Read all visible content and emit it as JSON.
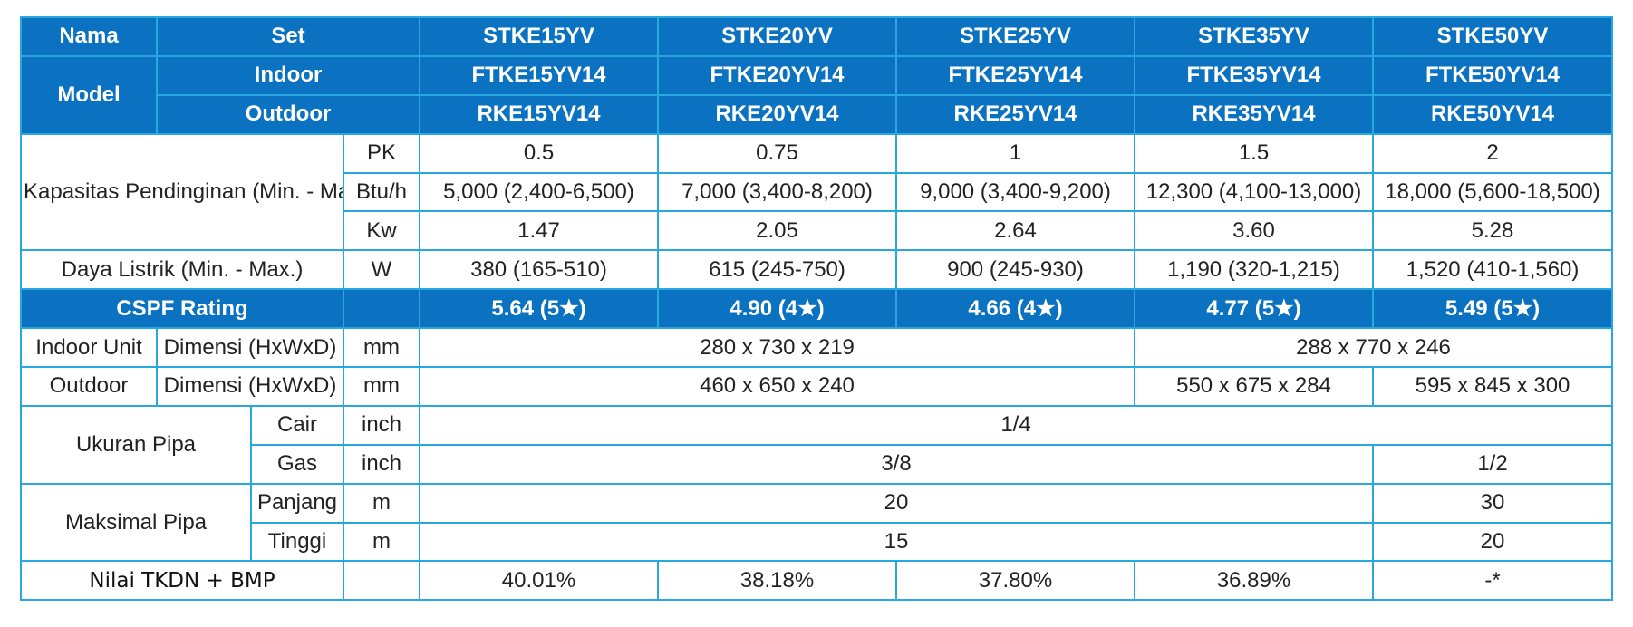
{
  "header": {
    "nama": "Nama",
    "set": "Set",
    "model": "Model",
    "indoor": "Indoor",
    "outdoor": "Outdoor",
    "set_models": [
      "STKE15YV",
      "STKE20YV",
      "STKE25YV",
      "STKE35YV",
      "STKE50YV"
    ],
    "indoor_models": [
      "FTKE15YV14",
      "FTKE20YV14",
      "FTKE25YV14",
      "FTKE35YV14",
      "FTKE50YV14"
    ],
    "outdoor_models": [
      "RKE15YV14",
      "RKE20YV14",
      "RKE25YV14",
      "RKE35YV14",
      "RKE50YV14"
    ]
  },
  "cooling": {
    "label": "Kapasitas Pendinginan (Min. - Max.)",
    "pk": {
      "unit": "PK",
      "values": [
        "0.5",
        "0.75",
        "1",
        "1.5",
        "2"
      ]
    },
    "btu": {
      "unit": "Btu/h",
      "values": [
        "5,000 (2,400-6,500)",
        "7,000 (3,400-8,200)",
        "9,000 (3,400-9,200)",
        "12,300 (4,100-13,000)",
        "18,000 (5,600-18,500)"
      ]
    },
    "kw": {
      "unit": "Kw",
      "values": [
        "1.47",
        "2.05",
        "2.64",
        "3.60",
        "5.28"
      ]
    }
  },
  "power": {
    "label": "Daya Listrik (Min. - Max.)",
    "unit": "W",
    "values": [
      "380 (165-510)",
      "615 (245-750)",
      "900 (245-930)",
      "1,190 (320-1,215)",
      "1,520 (410-1,560)"
    ]
  },
  "cspf": {
    "label": "CSPF Rating",
    "values": [
      "5.64 (5★)",
      "4.90 (4★)",
      "4.66 (4★)",
      "4.77 (5★)",
      "5.49 (5★)"
    ]
  },
  "indoor_unit": {
    "label": "Indoor Unit",
    "sub": "Dimensi (HxWxD)",
    "unit": "mm",
    "values": [
      "280 x 730 x 219",
      "288 x 770 x 246"
    ]
  },
  "outdoor_unit": {
    "label": "Outdoor",
    "sub": "Dimensi (HxWxD)",
    "unit": "mm",
    "values": [
      "460 x 650 x 240",
      "550 x 675 x 284",
      "595 x 845 x 300"
    ]
  },
  "pipe_size": {
    "label": "Ukuran Pipa",
    "cair": {
      "label": "Cair",
      "unit": "inch",
      "value": "1/4"
    },
    "gas": {
      "label": "Gas",
      "unit": "inch",
      "values": [
        "3/8",
        "1/2"
      ]
    }
  },
  "pipe_max": {
    "label": "Maksimal Pipa",
    "panjang": {
      "label": "Panjang",
      "unit": "m",
      "values": [
        "20",
        "30"
      ]
    },
    "tinggi": {
      "label": "Tinggi",
      "unit": "m",
      "values": [
        "15",
        "20"
      ]
    }
  },
  "tkdn": {
    "label": "Nilai TKDN + BMP",
    "values": [
      "40.01%",
      "38.18%",
      "37.80%",
      "36.89%",
      "-*"
    ]
  }
}
